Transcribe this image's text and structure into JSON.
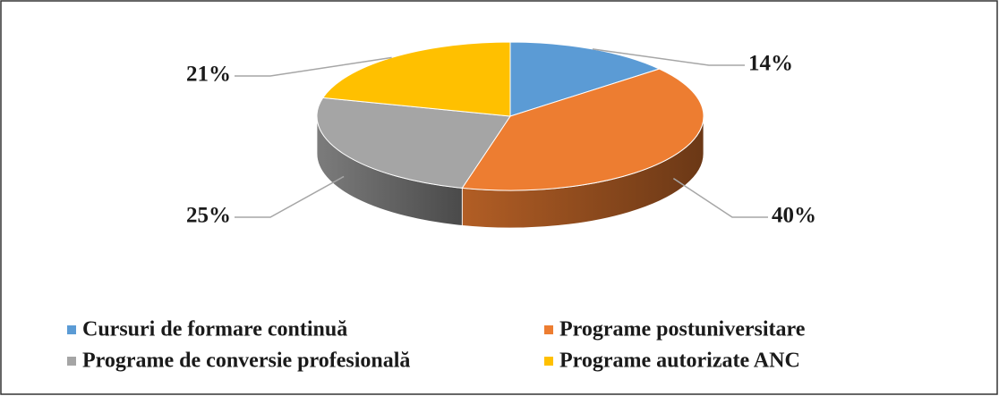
{
  "chart_data": {
    "type": "pie3d",
    "categories": [
      "Cursuri de formare continuă",
      "Programe postuniversitare",
      "Programe de conversie profesională",
      "Programe autorizate ANC"
    ],
    "values": [
      14,
      40,
      25,
      21
    ],
    "value_labels": [
      "14%",
      "40%",
      "25%",
      "21%"
    ],
    "colors": [
      "#5b9bd5",
      "#ed7d31",
      "#a5a5a5",
      "#ffc000"
    ],
    "legend": "bottom"
  }
}
